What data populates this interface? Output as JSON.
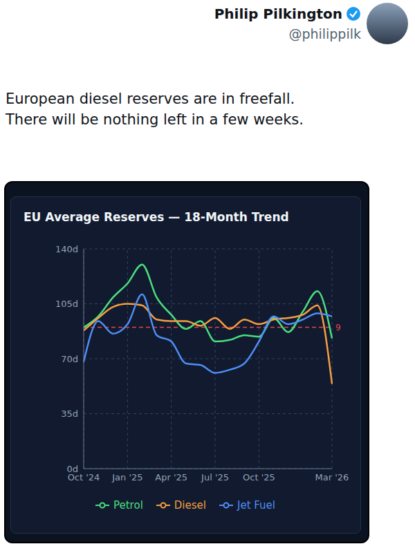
{
  "post": {
    "author": "Philip Pilkington",
    "handle": "@philippilk",
    "text_lines": [
      "European diesel reserves are in freefall.",
      "There will be nothing left in a few weeks."
    ]
  },
  "chart_data": {
    "type": "line",
    "title": "EU Average Reserves — 18-Month Trend",
    "categories": [
      "Oct '24",
      null,
      null,
      "Jan '25",
      null,
      null,
      "Apr '25",
      null,
      null,
      "Jul '25",
      null,
      null,
      "Oct '25",
      null,
      null,
      null,
      null,
      "Mar '26"
    ],
    "series": [
      {
        "name": "Petrol",
        "color": "#4ade80",
        "values": [
          90,
          97,
          109,
          118,
          130,
          109,
          98,
          89,
          94,
          81,
          82,
          85,
          84,
          96,
          87,
          100,
          113,
          83
        ]
      },
      {
        "name": "Diesel",
        "color": "#f59e42",
        "values": [
          88,
          96,
          103,
          105,
          104,
          95,
          94,
          94,
          91,
          96,
          89,
          95,
          92,
          95,
          96,
          98,
          104,
          54
        ]
      },
      {
        "name": "Jet Fuel",
        "color": "#4f8ef7",
        "values": [
          68,
          94,
          86,
          92,
          111,
          85,
          81,
          67,
          66,
          61,
          63,
          67,
          81,
          97,
          92,
          95,
          99,
          97
        ]
      }
    ],
    "ylim": [
      0,
      140
    ],
    "yticks": [
      {
        "value": 0,
        "label": "0d"
      },
      {
        "value": 35,
        "label": "35d"
      },
      {
        "value": 70,
        "label": "70d"
      },
      {
        "value": 105,
        "label": "105d"
      },
      {
        "value": 140,
        "label": "140d"
      }
    ],
    "grid": true,
    "legend": "bottom",
    "reference_line": {
      "value": 90,
      "label": "9",
      "color": "#e0484f",
      "line_style": "dashed"
    }
  }
}
